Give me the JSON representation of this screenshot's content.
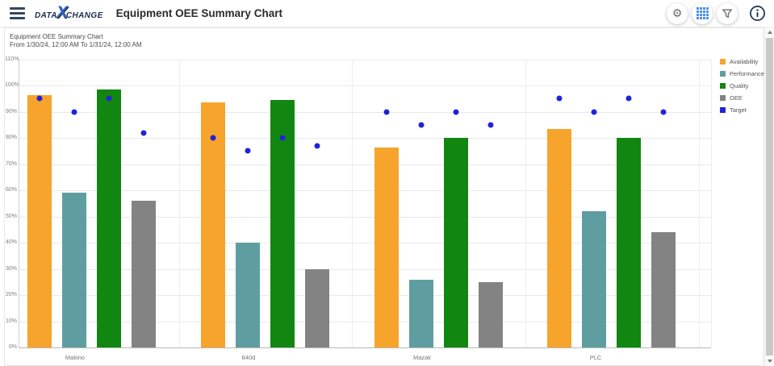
{
  "header": {
    "logo": {
      "data": "DATA",
      "x": "X",
      "change": "CHANGE"
    },
    "title": "Equipment OEE Summary Chart",
    "buttons": {
      "menu": "menu",
      "settings": "settings",
      "grid_view": "grid view",
      "filter": "filter",
      "info": "info"
    }
  },
  "chart": {
    "title": "Equipment OEE Summary Chart",
    "subtitle": "From 1/30/24, 12:00 AM To 1/31/24, 12:00 AM"
  },
  "chart_data": {
    "type": "bar",
    "title": "Equipment OEE Summary Chart",
    "subtitle": "From 1/30/24, 12:00 AM To 1/31/24, 12:00 AM",
    "categories": [
      "Makino",
      "840d",
      "Mazak",
      "PLC"
    ],
    "series": [
      {
        "name": "Availability",
        "color": "#F7A42C",
        "values": [
          96.5,
          93.5,
          76.5,
          83.5
        ]
      },
      {
        "name": "Performance",
        "color": "#5F9EA0",
        "values": [
          59,
          40,
          26,
          52
        ]
      },
      {
        "name": "Quality",
        "color": "#118711",
        "values": [
          98.5,
          94.5,
          80,
          80
        ]
      },
      {
        "name": "OEE",
        "color": "#838383",
        "values": [
          56,
          30,
          25,
          44
        ]
      }
    ],
    "target": {
      "name": "Target",
      "color": "#2222DB",
      "marker": "circle",
      "values_by_category": [
        [
          95,
          90,
          95,
          82
        ],
        [
          80,
          75,
          80,
          77
        ],
        [
          90,
          85,
          90,
          85
        ],
        [
          95,
          90,
          95,
          90
        ]
      ]
    },
    "y_ticks": [
      "0%",
      "10%",
      "20%",
      "30%",
      "40%",
      "50%",
      "60%",
      "70%",
      "80%",
      "90%",
      "100%",
      "110%"
    ],
    "ylim": [
      0,
      110
    ],
    "grid": "horizontal",
    "legend_position": "right",
    "legend": [
      "Availability",
      "Performance",
      "Quality",
      "OEE",
      "Target"
    ]
  }
}
